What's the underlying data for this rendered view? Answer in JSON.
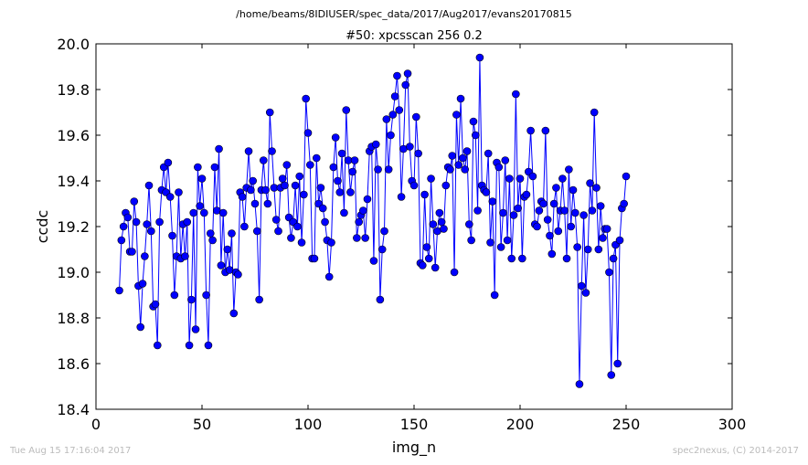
{
  "chart_data": {
    "type": "line",
    "supertitle": "/home/beams/8IDIUSER/spec_data/2017/Aug2017/evans20170815",
    "title": "#50: xpcsscan 256 0.2",
    "xlabel": "img_n",
    "ylabel": "ccdc",
    "xlim": [
      0,
      300
    ],
    "ylim": [
      18.4,
      20.0
    ],
    "xticks": [
      "0",
      "50",
      "100",
      "150",
      "200",
      "250",
      "300"
    ],
    "yticks": [
      "18.4",
      "18.6",
      "18.8",
      "19.0",
      "19.2",
      "19.4",
      "19.6",
      "19.8",
      "20.0"
    ],
    "grid": false,
    "line_color": "#0000ff",
    "marker": "circle",
    "x_start": 11,
    "values": [
      18.92,
      19.14,
      19.2,
      19.26,
      19.24,
      19.09,
      19.09,
      19.31,
      19.22,
      18.94,
      18.76,
      18.95,
      19.07,
      19.21,
      19.38,
      19.18,
      18.85,
      18.86,
      18.68,
      19.22,
      19.36,
      19.46,
      19.35,
      19.48,
      19.33,
      19.16,
      18.9,
      19.07,
      19.35,
      19.06,
      19.21,
      19.07,
      19.22,
      18.68,
      18.88,
      19.26,
      18.75,
      19.46,
      19.29,
      19.41,
      19.26,
      18.9,
      18.68,
      19.17,
      19.14,
      19.46,
      19.27,
      19.54,
      19.03,
      19.26,
      19.0,
      19.1,
      19.01,
      19.17,
      18.82,
      19.0,
      18.99,
      19.35,
      19.33,
      19.2,
      19.37,
      19.53,
      19.36,
      19.4,
      19.3,
      19.18,
      18.88,
      19.36,
      19.49,
      19.36,
      19.3,
      19.7,
      19.53,
      19.37,
      19.23,
      19.18,
      19.37,
      19.41,
      19.38,
      19.47,
      19.24,
      19.15,
      19.22,
      19.38,
      19.2,
      19.42,
      19.13,
      19.34,
      19.76,
      19.61,
      19.47,
      19.06,
      19.06,
      19.5,
      19.3,
      19.37,
      19.28,
      19.22,
      19.14,
      18.98,
      19.13,
      19.46,
      19.59,
      19.4,
      19.35,
      19.52,
      19.26,
      19.71,
      19.49,
      19.35,
      19.44,
      19.49,
      19.15,
      19.22,
      19.25,
      19.27,
      19.15,
      19.32,
      19.53,
      19.55,
      19.05,
      19.56,
      19.45,
      18.88,
      19.1,
      19.18,
      19.67,
      19.45,
      19.6,
      19.69,
      19.77,
      19.86,
      19.71,
      19.33,
      19.54,
      19.82,
      19.87,
      19.55,
      19.4,
      19.38,
      19.68,
      19.52,
      19.04,
      19.03,
      19.34,
      19.11,
      19.06,
      19.41,
      19.21,
      19.02,
      19.18,
      19.26,
      19.22,
      19.19,
      19.38,
      19.46,
      19.45,
      19.51,
      19.0,
      19.69,
      19.47,
      19.76,
      19.5,
      19.45,
      19.53,
      19.21,
      19.14,
      19.66,
      19.6,
      19.27,
      19.94,
      19.38,
      19.36,
      19.35,
      19.52,
      19.13,
      19.31,
      18.9,
      19.48,
      19.46,
      19.11,
      19.26,
      19.49,
      19.14,
      19.41,
      19.06,
      19.25,
      19.78,
      19.28,
      19.41,
      19.06,
      19.33,
      19.34,
      19.44,
      19.62,
      19.42,
      19.21,
      19.2,
      19.27,
      19.31,
      19.3,
      19.62,
      19.23,
      19.16,
      19.08,
      19.3,
      19.37,
      19.18,
      19.27,
      19.41,
      19.27,
      19.06,
      19.45,
      19.2,
      19.36,
      19.26,
      19.11,
      18.51,
      18.94,
      19.25,
      18.91,
      19.1,
      19.39,
      19.27,
      19.7,
      19.37,
      19.1,
      19.29,
      19.15,
      19.19,
      19.19,
      19.0,
      18.55,
      19.06,
      19.12,
      18.6,
      19.14,
      19.28,
      19.3,
      19.42
    ]
  },
  "footer": {
    "timestamp": "Tue Aug 15 17:16:04 2017",
    "credit": "spec2nexus, (C) 2014-2017"
  }
}
